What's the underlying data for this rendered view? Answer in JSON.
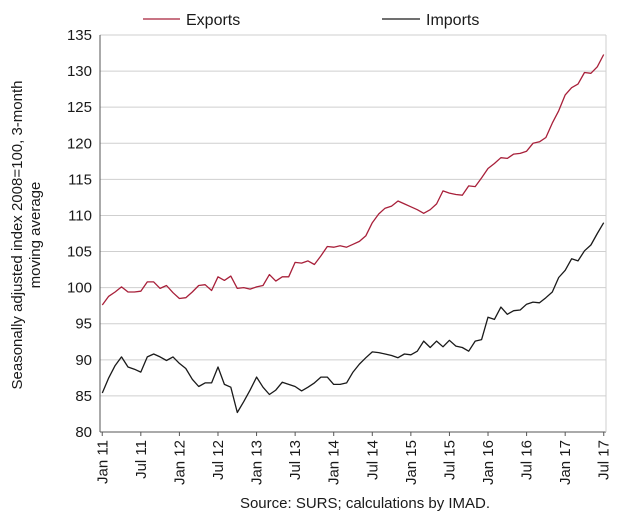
{
  "chart_data": {
    "type": "line",
    "ylabel": "Seasonally adjusted index 2008=100, 3-month moving average",
    "ylabel_lines": [
      "Seasonally adjusted index 2008=100, 3-month",
      "moving average"
    ],
    "source": "Source: SURS; calculations by IMAD.",
    "ylim": [
      80,
      135
    ],
    "y_ticks": [
      80,
      85,
      90,
      95,
      100,
      105,
      110,
      115,
      120,
      125,
      130,
      135
    ],
    "x_start": "Jan 11",
    "x_tick_labels": [
      "Jan 11",
      "Jul 11",
      "Jan 12",
      "Jul 12",
      "Jan 13",
      "Jul 13",
      "Jan 14",
      "Jul 14",
      "Jan 15",
      "Jul 15",
      "Jan 16",
      "Jul 16",
      "Jan 17",
      "Jul 17"
    ],
    "grid": "horizontal",
    "legend_position": "top",
    "series": [
      {
        "name": "Exports",
        "color": "#a8203a",
        "values": [
          97.6,
          98.8,
          99.4,
          100.1,
          99.4,
          99.4,
          99.5,
          100.8,
          100.8,
          99.9,
          100.3,
          99.3,
          98.5,
          98.6,
          99.4,
          100.3,
          100.4,
          99.6,
          101.5,
          101.0,
          101.6,
          99.9,
          100.0,
          99.8,
          100.1,
          100.3,
          101.8,
          100.9,
          101.5,
          101.5,
          103.5,
          103.4,
          103.7,
          103.2,
          104.4,
          105.7,
          105.6,
          105.8,
          105.6,
          106.0,
          106.4,
          107.2,
          109.0,
          110.2,
          111.0,
          111.3,
          112.0,
          111.6,
          111.2,
          110.8,
          110.3,
          110.8,
          111.6,
          113.4,
          113.1,
          112.9,
          112.8,
          114.1,
          114.0,
          115.2,
          116.5,
          117.2,
          118.0,
          117.9,
          118.5,
          118.6,
          118.9,
          120.0,
          120.2,
          120.8,
          122.8,
          124.5,
          126.7,
          127.7,
          128.2,
          129.8,
          129.7,
          130.6,
          132.3
        ]
      },
      {
        "name": "Imports",
        "color": "#1a1a1a",
        "values": [
          85.4,
          87.5,
          89.2,
          90.4,
          89.0,
          88.7,
          88.3,
          90.4,
          90.8,
          90.4,
          89.9,
          90.4,
          89.5,
          88.8,
          87.3,
          86.3,
          86.8,
          86.8,
          89.0,
          86.6,
          86.2,
          82.7,
          84.2,
          85.8,
          87.6,
          86.2,
          85.2,
          85.8,
          86.9,
          86.6,
          86.3,
          85.7,
          86.2,
          86.8,
          87.6,
          87.6,
          86.6,
          86.6,
          86.8,
          88.3,
          89.4,
          90.3,
          91.1,
          91.0,
          90.8,
          90.6,
          90.3,
          90.8,
          90.7,
          91.2,
          92.6,
          91.7,
          92.6,
          91.8,
          92.7,
          91.9,
          91.7,
          91.2,
          92.6,
          92.8,
          95.9,
          95.6,
          97.3,
          96.3,
          96.8,
          96.9,
          97.7,
          98.0,
          97.9,
          98.6,
          99.4,
          101.4,
          102.4,
          104.0,
          103.7,
          105.1,
          105.9,
          107.5,
          109.0
        ]
      }
    ]
  }
}
